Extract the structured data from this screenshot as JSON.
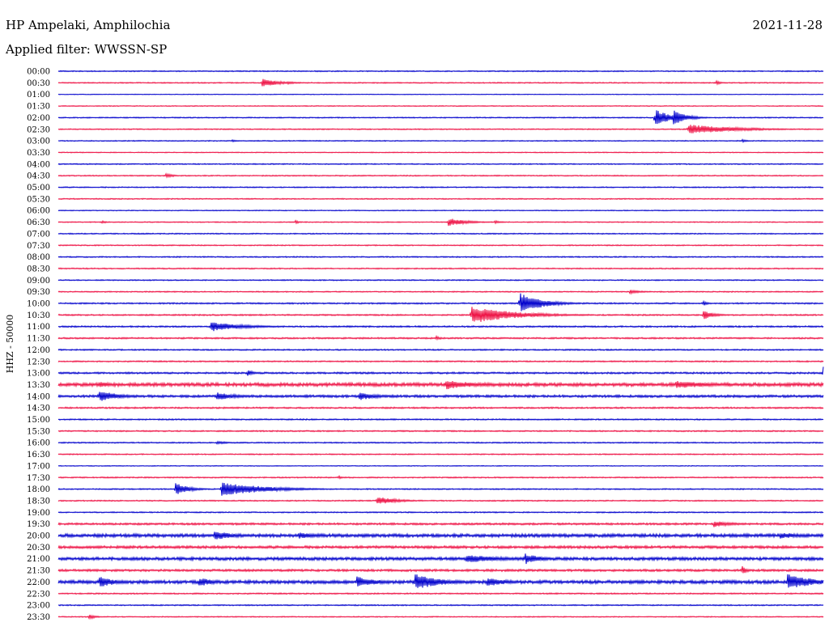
{
  "header": {
    "station": "HP Ampelaki, Amphilochia",
    "date": "2021-11-28",
    "filter": "Applied filter: WWSSN-SP"
  },
  "channel_label": "HHZ - 50000",
  "colors": {
    "even_row": "#0000cc",
    "odd_row": "#ee1144",
    "text": "#000000"
  },
  "chart_data": {
    "type": "line",
    "title": "HP Ampelaki, Amphilochia",
    "subtitle": "Applied filter: WWSSN-SP",
    "ylabel": "HHZ - 50000",
    "xlabel": "",
    "row_minutes": 30,
    "grid": false,
    "time_labels": [
      "00:00",
      "00:30",
      "01:00",
      "01:30",
      "02:00",
      "02:30",
      "03:00",
      "03:30",
      "04:00",
      "04:30",
      "05:00",
      "05:30",
      "06:00",
      "06:30",
      "07:00",
      "07:30",
      "08:00",
      "08:30",
      "09:00",
      "09:30",
      "10:00",
      "10:30",
      "11:00",
      "11:30",
      "12:00",
      "12:30",
      "13:00",
      "13:30",
      "14:00",
      "14:30",
      "15:00",
      "15:30",
      "16:00",
      "16:30",
      "17:00",
      "17:30",
      "18:00",
      "18:30",
      "19:00",
      "19:30",
      "20:00",
      "20:30",
      "21:00",
      "21:30",
      "22:00",
      "22:30",
      "23:00",
      "23:30"
    ],
    "noise_level": [
      1,
      1,
      0.6,
      0.8,
      1,
      1,
      0.9,
      0.8,
      1,
      1,
      1,
      1,
      0.8,
      0.9,
      1,
      1,
      1.1,
      1.1,
      1,
      1,
      1.3,
      1.3,
      1.4,
      1.4,
      1.2,
      1.2,
      1.6,
      3.2,
      2.2,
      1.4,
      1.2,
      1.2,
      1.1,
      1,
      0.7,
      1.1,
      1.1,
      1.1,
      1.1,
      1.8,
      3,
      2.4,
      2.8,
      2,
      3,
      1.2,
      1.1,
      0.9
    ],
    "events": [
      {
        "row": 1,
        "minute": 8.0,
        "amp": 5,
        "dur": 0.7
      },
      {
        "row": 1,
        "minute": 9.0,
        "amp": 2,
        "dur": 0.3
      },
      {
        "row": 1,
        "minute": 25.8,
        "amp": 2.5,
        "dur": 0.2
      },
      {
        "row": 4,
        "minute": 23.4,
        "amp": 12,
        "dur": 0.5
      },
      {
        "row": 4,
        "minute": 24.1,
        "amp": 10,
        "dur": 0.5
      },
      {
        "row": 5,
        "minute": 24.7,
        "amp": 6,
        "dur": 1.8
      },
      {
        "row": 6,
        "minute": 6.8,
        "amp": 2,
        "dur": 0.2
      },
      {
        "row": 6,
        "minute": 26.8,
        "amp": 2,
        "dur": 0.2
      },
      {
        "row": 9,
        "minute": 4.2,
        "amp": 3,
        "dur": 0.3
      },
      {
        "row": 13,
        "minute": 1.7,
        "amp": 2,
        "dur": 0.2
      },
      {
        "row": 13,
        "minute": 9.3,
        "amp": 2,
        "dur": 0.2
      },
      {
        "row": 13,
        "minute": 15.3,
        "amp": 5,
        "dur": 0.7
      },
      {
        "row": 13,
        "minute": 17.1,
        "amp": 2,
        "dur": 0.3
      },
      {
        "row": 19,
        "minute": 22.4,
        "amp": 2.5,
        "dur": 0.5
      },
      {
        "row": 20,
        "minute": 18.1,
        "amp": 14,
        "dur": 0.8
      },
      {
        "row": 20,
        "minute": 25.3,
        "amp": 3,
        "dur": 0.2
      },
      {
        "row": 21,
        "minute": 16.2,
        "amp": 11,
        "dur": 1.6
      },
      {
        "row": 21,
        "minute": 25.3,
        "amp": 6,
        "dur": 0.4
      },
      {
        "row": 22,
        "minute": 6.0,
        "amp": 6,
        "dur": 1.2
      },
      {
        "row": 23,
        "minute": 14.8,
        "amp": 3,
        "dur": 0.2
      },
      {
        "row": 26,
        "minute": 7.4,
        "amp": 4,
        "dur": 0.3
      },
      {
        "row": 26,
        "minute": 30.0,
        "amp": 8,
        "dur": 1.8
      },
      {
        "row": 27,
        "minute": 15.2,
        "amp": 6,
        "dur": 1.2
      },
      {
        "row": 27,
        "minute": 24.2,
        "amp": 5,
        "dur": 1.5
      },
      {
        "row": 27,
        "minute": 1.6,
        "amp": 4,
        "dur": 0.6
      },
      {
        "row": 28,
        "minute": 1.6,
        "amp": 7,
        "dur": 0.8
      },
      {
        "row": 28,
        "minute": 6.2,
        "amp": 5,
        "dur": 0.8
      },
      {
        "row": 28,
        "minute": 11.8,
        "amp": 5,
        "dur": 0.8
      },
      {
        "row": 32,
        "minute": 6.2,
        "amp": 2,
        "dur": 0.5
      },
      {
        "row": 35,
        "minute": 11.0,
        "amp": 3,
        "dur": 0.1
      },
      {
        "row": 36,
        "minute": 4.6,
        "amp": 8,
        "dur": 0.5
      },
      {
        "row": 36,
        "minute": 6.4,
        "amp": 9,
        "dur": 1.6
      },
      {
        "row": 37,
        "minute": 12.5,
        "amp": 5,
        "dur": 0.8
      },
      {
        "row": 39,
        "minute": 25.7,
        "amp": 4,
        "dur": 0.8
      },
      {
        "row": 40,
        "minute": 6.1,
        "amp": 6,
        "dur": 0.8
      },
      {
        "row": 40,
        "minute": 9.4,
        "amp": 4,
        "dur": 0.8
      },
      {
        "row": 40,
        "minute": 28.3,
        "amp": 4,
        "dur": 1.0
      },
      {
        "row": 42,
        "minute": 18.3,
        "amp": 7,
        "dur": 0.6
      },
      {
        "row": 42,
        "minute": 16.0,
        "amp": 5,
        "dur": 1.6
      },
      {
        "row": 43,
        "minute": 26.8,
        "amp": 6,
        "dur": 0.2
      },
      {
        "row": 44,
        "minute": 1.6,
        "amp": 7,
        "dur": 0.7
      },
      {
        "row": 44,
        "minute": 5.5,
        "amp": 6,
        "dur": 0.6
      },
      {
        "row": 44,
        "minute": 11.7,
        "amp": 7,
        "dur": 0.8
      },
      {
        "row": 44,
        "minute": 14.0,
        "amp": 10,
        "dur": 1.0
      },
      {
        "row": 44,
        "minute": 16.8,
        "amp": 6,
        "dur": 0.8
      },
      {
        "row": 44,
        "minute": 28.6,
        "amp": 10,
        "dur": 1.0
      },
      {
        "row": 47,
        "minute": 1.2,
        "amp": 3,
        "dur": 0.3
      }
    ]
  }
}
